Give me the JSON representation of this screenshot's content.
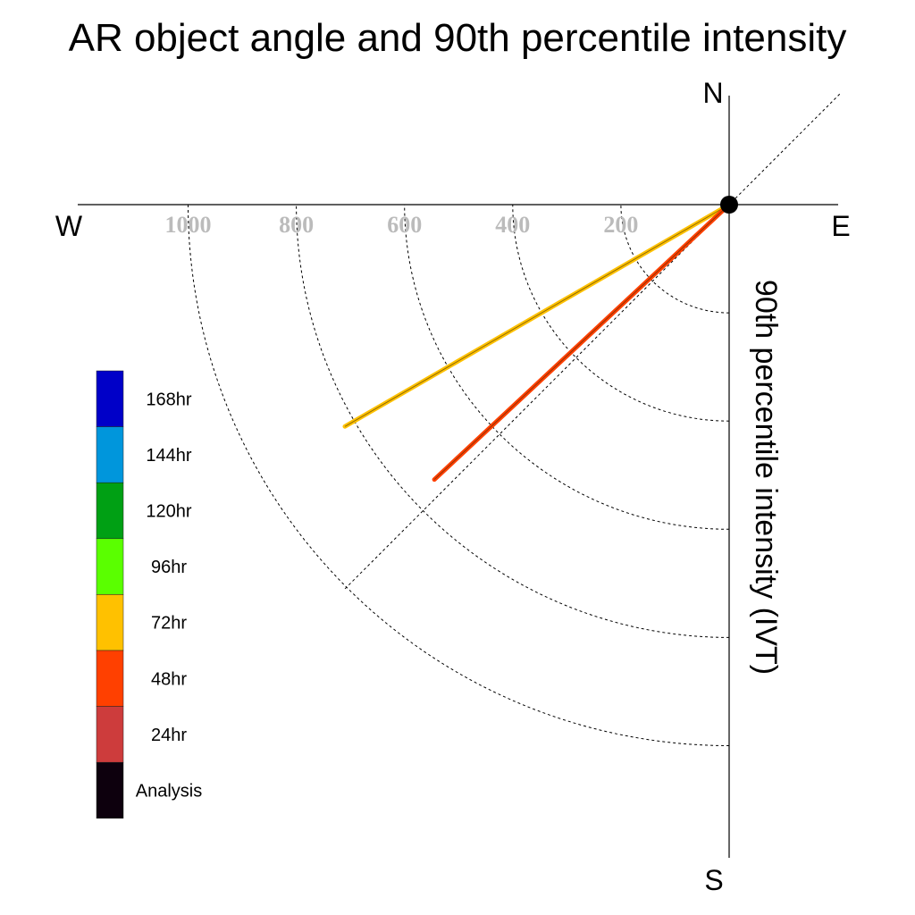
{
  "chart_data": {
    "type": "polar-line",
    "title": "AR object angle and 90th percentile intensity",
    "radial_label": "90th percentile intensity (IVT)",
    "compass": {
      "north": "N",
      "south": "S",
      "east": "E",
      "west": "W"
    },
    "rings": [
      200,
      400,
      600,
      800,
      1000
    ],
    "ring_labels": [
      "1000",
      "800",
      "600",
      "400",
      "200"
    ],
    "reference_angle_deg": 45,
    "series": [
      {
        "name": "72hr",
        "angle_deg": 60,
        "intensity": 820,
        "color": "#ffc100"
      },
      {
        "name": "48hr",
        "angle_deg": 47,
        "intensity": 745,
        "color": "#ff4000"
      }
    ],
    "legend": [
      {
        "label": "168hr",
        "color": "#0000c8"
      },
      {
        "label": "144hr",
        "color": "#0096dc"
      },
      {
        "label": "120hr",
        "color": "#00a014"
      },
      {
        "label": "96hr",
        "color": "#5aff00"
      },
      {
        "label": "72hr",
        "color": "#ffc100"
      },
      {
        "label": "48hr",
        "color": "#ff4000"
      },
      {
        "label": "24hr",
        "color": "#cd3c3c"
      },
      {
        "label": "Analysis",
        "color": "#0d000d"
      }
    ]
  }
}
